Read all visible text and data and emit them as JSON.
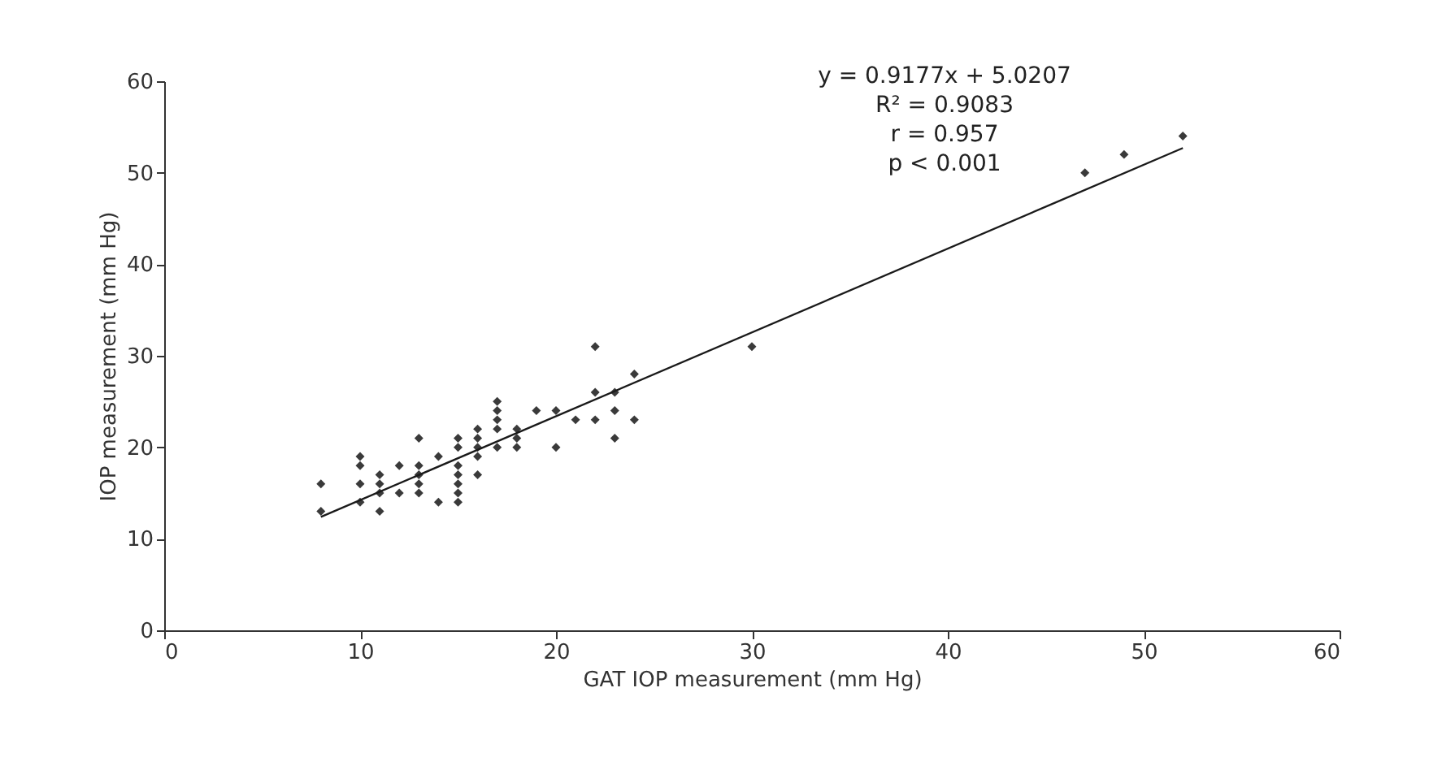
{
  "chart_data": {
    "type": "scatter",
    "xlabel": "GAT IOP measurement (mm Hg)",
    "ylabel": "IOP measurement (mm Hg)",
    "xlim": [
      0,
      60
    ],
    "xticks": [
      0,
      10,
      20,
      30,
      40,
      50,
      60
    ],
    "ylim": [
      0,
      60
    ],
    "yticks": [
      0,
      10,
      20,
      30,
      40,
      50,
      60
    ],
    "grid": false,
    "annotations": [
      "y = 0.9177x + 5.0207",
      "R² = 0.9083",
      "r = 0.957",
      "p < 0.001"
    ],
    "series": [
      {
        "marker": "diamond",
        "color": "#3a3a3a",
        "x": [
          8,
          8,
          10,
          10,
          10,
          10,
          11,
          11,
          11,
          11,
          12,
          12,
          13,
          13,
          13,
          13,
          13,
          14,
          14,
          15,
          15,
          15,
          15,
          15,
          15,
          15,
          16,
          16,
          16,
          16,
          16,
          17,
          17,
          17,
          17,
          17,
          18,
          18,
          18,
          19,
          20,
          20,
          21,
          22,
          22,
          22,
          23,
          23,
          23,
          24,
          24,
          30,
          47,
          49,
          52
        ],
        "values": [
          16,
          13,
          19,
          18,
          16,
          14,
          17,
          16,
          15,
          13,
          18,
          15,
          21,
          18,
          17,
          16,
          15,
          19,
          14,
          21,
          20,
          18,
          17,
          16,
          15,
          14,
          22,
          21,
          20,
          19,
          17,
          25,
          24,
          23,
          22,
          20,
          22,
          21,
          20,
          24,
          24,
          20,
          23,
          31,
          26,
          23,
          26,
          24,
          21,
          28,
          23,
          31,
          50,
          52,
          54
        ]
      },
      {
        "type": "line",
        "marker": "none",
        "color": "#1a1a1a",
        "x": [
          8,
          52
        ],
        "values": [
          12.4,
          52.7
        ]
      }
    ]
  }
}
